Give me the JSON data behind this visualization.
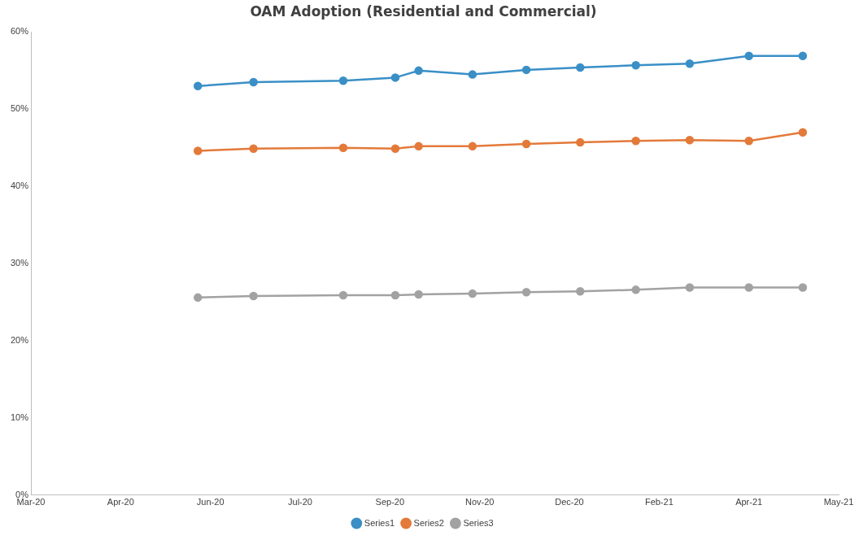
{
  "chart_data": {
    "type": "line",
    "title": "OAM Adoption (Residential and Commercial)",
    "x": [
      "2020-06-02",
      "2020-07-03",
      "2020-08-22",
      "2020-09-20",
      "2020-10-03",
      "2020-11-02",
      "2020-12-02",
      "2021-01-01",
      "2021-02-01",
      "2021-03-03",
      "2021-04-05",
      "2021-05-05"
    ],
    "series": [
      {
        "name": "Series1",
        "color": "#3a8fc6",
        "values": [
          53.0,
          53.5,
          53.7,
          54.1,
          55.0,
          54.5,
          55.1,
          55.4,
          55.7,
          55.9,
          56.9,
          56.9
        ]
      },
      {
        "name": "Series2",
        "color": "#e37a3a",
        "values": [
          44.6,
          44.9,
          45.0,
          44.9,
          45.2,
          45.2,
          45.5,
          45.7,
          45.9,
          46.0,
          45.9,
          47.0
        ]
      },
      {
        "name": "Series3",
        "color": "#a2a2a2",
        "values": [
          25.6,
          25.8,
          25.9,
          25.9,
          26.0,
          26.1,
          26.3,
          26.4,
          26.6,
          26.9,
          26.9,
          26.9
        ]
      }
    ],
    "xlim": [
      "2020-03-01",
      "2021-05-25"
    ],
    "xticks": [
      {
        "value": "2020-03-01",
        "label": "Mar-20"
      },
      {
        "value": "2020-04-20",
        "label": "Apr-20"
      },
      {
        "value": "2020-06-09",
        "label": "Jun-20"
      },
      {
        "value": "2020-07-29",
        "label": "Jul-20"
      },
      {
        "value": "2020-09-17",
        "label": "Sep-20"
      },
      {
        "value": "2020-11-06",
        "label": "Nov-20"
      },
      {
        "value": "2020-12-26",
        "label": "Dec-20"
      },
      {
        "value": "2021-02-14",
        "label": "Feb-21"
      },
      {
        "value": "2021-04-05",
        "label": "Apr-21"
      },
      {
        "value": "2021-05-25",
        "label": "May-21"
      }
    ],
    "ylim": [
      0,
      60
    ],
    "yticks": [
      {
        "value": 0,
        "label": "0%"
      },
      {
        "value": 10,
        "label": "10%"
      },
      {
        "value": 20,
        "label": "20%"
      },
      {
        "value": 30,
        "label": "30%"
      },
      {
        "value": 40,
        "label": "40%"
      },
      {
        "value": 50,
        "label": "50%"
      },
      {
        "value": 60,
        "label": "60%"
      }
    ],
    "grid": false,
    "legend": "bottom",
    "marker": "circle",
    "line_style": "solid"
  }
}
